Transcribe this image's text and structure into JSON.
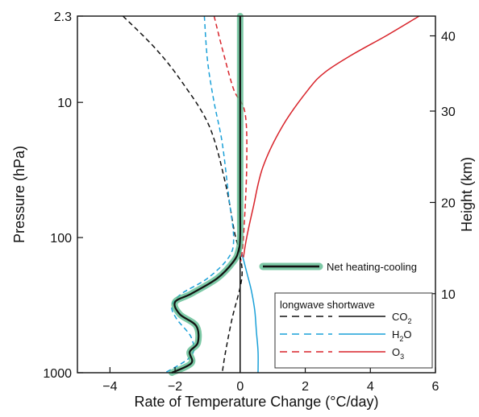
{
  "chart_data": {
    "type": "line",
    "xlabel": "Rate of Temperature Change (°C/day)",
    "ylabel": "Pressure (hPa)",
    "y2label": "Height (km)",
    "xlim": [
      -5,
      6
    ],
    "ylim": [
      1000,
      2.3
    ],
    "yscale": "log",
    "x_ticks": [
      "−4",
      "−2",
      "0",
      "2",
      "4",
      "6"
    ],
    "x_tick_values": [
      -4,
      -2,
      0,
      2,
      4,
      6
    ],
    "y_ticks": [
      {
        "value": 2.3,
        "label": "2.3"
      },
      {
        "value": 10,
        "label": "10"
      },
      {
        "value": 100,
        "label": "100"
      },
      {
        "value": 1000,
        "label": "1000"
      }
    ],
    "y2_ticks": [
      {
        "value": 40,
        "label": "40"
      },
      {
        "value": 30,
        "label": "30"
      },
      {
        "value": 20,
        "label": "20"
      },
      {
        "value": 10,
        "label": "10"
      }
    ],
    "y2_ref": {
      "pressure": [
        3.22,
        11.6,
        55.0,
        260.0
      ],
      "height": [
        40,
        30,
        20,
        10
      ]
    },
    "zero_line_x": 0,
    "legend": {
      "header": "longwave shortwave",
      "position": "bottom-right",
      "entries": [
        {
          "base": "CO",
          "sub": "2",
          "color": "#111111"
        },
        {
          "base": "H",
          "sub": "2",
          "tail": "O",
          "color": "#1aa0d8"
        },
        {
          "base": "O",
          "sub": "3",
          "color": "#d8232a"
        }
      ]
    },
    "net_label": "Net heating-cooling",
    "series": [
      {
        "key": "co2_lw",
        "color": "#111111",
        "dash": true,
        "x": [
          -3.6,
          -2.6,
          -1.8,
          -0.95,
          -0.45,
          -0.18,
          -0.02,
          0.05,
          -0.25,
          -0.45,
          -0.55
        ],
        "y": [
          2.3,
          4,
          7,
          15,
          40,
          90,
          130,
          200,
          400,
          700,
          1000
        ]
      },
      {
        "key": "co2_sw",
        "color": "#111111",
        "dash": false,
        "x": [
          0,
          0
        ],
        "y": [
          130,
          1000
        ]
      },
      {
        "key": "h2o_lw",
        "color": "#1aa0d8",
        "dash": true,
        "x": [
          -1.1,
          -1.0,
          -0.8,
          -0.55,
          -0.35,
          -0.2,
          -0.35,
          -1.0,
          -1.8,
          -2.1,
          -1.95,
          -1.5,
          -1.5,
          -2.3
        ],
        "y": [
          2.3,
          5,
          10,
          20,
          50,
          100,
          140,
          200,
          260,
          320,
          400,
          550,
          750,
          1000
        ]
      },
      {
        "key": "h2o_sw",
        "color": "#1aa0d8",
        "dash": false,
        "x": [
          0.05,
          0.2,
          0.35,
          0.45,
          0.5,
          0.55,
          0.55
        ],
        "y": [
          130,
          180,
          250,
          350,
          500,
          700,
          1000
        ]
      },
      {
        "key": "o3_lw",
        "color": "#d8232a",
        "dash": true,
        "x": [
          -0.8,
          -0.55,
          -0.2,
          0.15,
          0.2,
          0.1,
          0.02
        ],
        "y": [
          2.3,
          4,
          8,
          12,
          30,
          100,
          150
        ]
      },
      {
        "key": "o3_sw",
        "color": "#d8232a",
        "dash": false,
        "x": [
          5.5,
          4.5,
          3.4,
          2.6,
          2.1,
          1.3,
          0.7,
          0.4,
          0.2,
          0.1
        ],
        "y": [
          2.3,
          3.2,
          4.5,
          6,
          8,
          15,
          30,
          60,
          100,
          140
        ]
      },
      {
        "key": "net",
        "color": "#111111",
        "dash": false,
        "net": true,
        "x": [
          0,
          0,
          0,
          -0.05,
          -0.2,
          -0.7,
          -1.5,
          -2.0,
          -1.85,
          -1.35,
          -1.3,
          -1.55,
          -1.5,
          -2.1
        ],
        "y": [
          2.3,
          50,
          100,
          125,
          150,
          200,
          260,
          300,
          370,
          450,
          600,
          700,
          850,
          1000
        ]
      }
    ]
  }
}
